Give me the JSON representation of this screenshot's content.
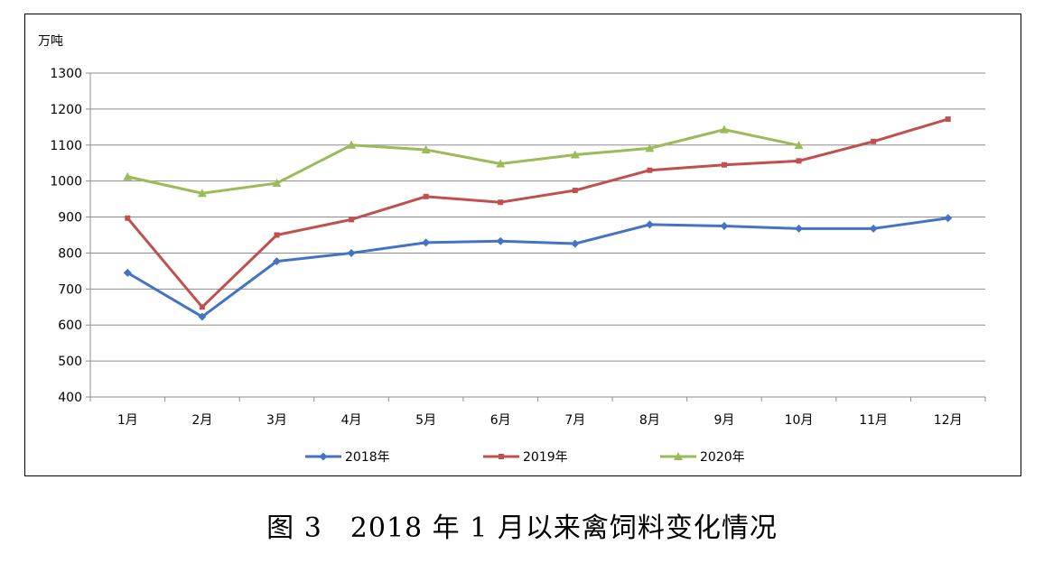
{
  "chart_data": {
    "type": "line",
    "unit_label": "万吨",
    "categories": [
      "1月",
      "2月",
      "3月",
      "4月",
      "5月",
      "6月",
      "7月",
      "8月",
      "9月",
      "10月",
      "11月",
      "12月"
    ],
    "ylim": [
      400,
      1300
    ],
    "yticks": [
      400,
      500,
      600,
      700,
      800,
      900,
      1000,
      1100,
      1200,
      1300
    ],
    "grid": true,
    "legend_position": "bottom",
    "series": [
      {
        "name": "2018年",
        "color": "#4472C4",
        "marker": "diamond",
        "values": [
          745,
          623,
          777,
          800,
          829,
          833,
          826,
          879,
          875,
          868,
          868,
          897
        ]
      },
      {
        "name": "2019年",
        "color": "#C0504D",
        "marker": "square",
        "values": [
          897,
          650,
          850,
          893,
          957,
          941,
          974,
          1030,
          1045,
          1056,
          1110,
          1172
        ]
      },
      {
        "name": "2020年",
        "color": "#9BBB59",
        "marker": "triangle",
        "values": [
          1012,
          966,
          994,
          1100,
          1087,
          1048,
          1073,
          1091,
          1143,
          1099,
          null,
          null
        ]
      }
    ]
  },
  "caption": "图 3　2018 年 1 月以来禽饲料变化情况"
}
